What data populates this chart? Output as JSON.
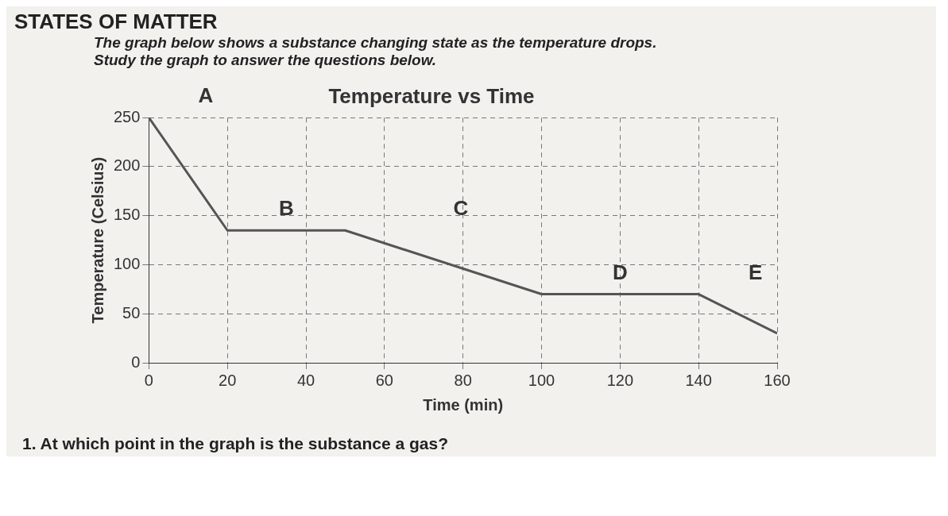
{
  "chart_data": {
    "type": "line",
    "title": "Temperature vs Time",
    "xlabel": "Time (min)",
    "ylabel": "Temperature (Celsius)",
    "x": [
      0,
      20,
      50,
      100,
      140,
      160
    ],
    "series": [
      {
        "color": "#555555",
        "values": [
          250,
          135,
          135,
          70,
          70,
          30
        ]
      }
    ],
    "xlim": [
      0,
      160
    ],
    "xticks": [
      0,
      20,
      40,
      60,
      80,
      100,
      120,
      140,
      160
    ],
    "ylim": [
      0,
      250
    ],
    "yticks": [
      0,
      50,
      100,
      150,
      200,
      250
    ],
    "grid": true,
    "marker": "none",
    "line_style": "solid",
    "annotations": [
      "STATES OF MATTER",
      "The graph below shows a substance changing state as the temperature drops.",
      "Study the graph to answer the questions below.",
      "A",
      "B",
      "C",
      "D",
      "E",
      "1.  At which point in the graph is the substance a gas?"
    ]
  }
}
